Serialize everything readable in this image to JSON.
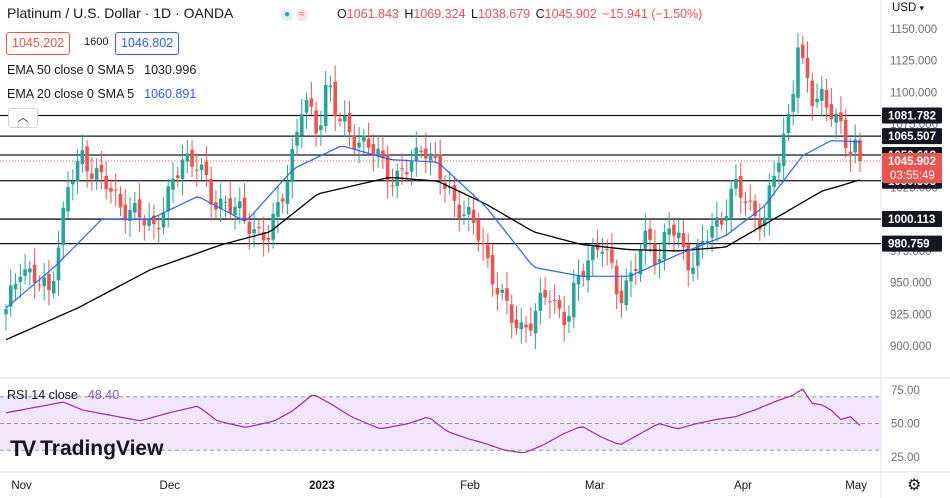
{
  "header": {
    "title": "Platinum / U.S. Dollar · 1D · OANDA",
    "ohlc": {
      "o_label": "O",
      "o": "1061.843",
      "h_label": "H",
      "h": "1069.324",
      "l_label": "L",
      "l": "1038.679",
      "c_label": "C",
      "c": "1045.902",
      "change": "−15.941 (−1.50%)"
    },
    "currency": "USD",
    "currency_icon": "chevron-down-icon",
    "bid": "1045.202",
    "spread": "1600",
    "ask": "1046.802",
    "ema50_label": "EMA 50 close 0 SMA 5",
    "ema50_value": "1030.996",
    "ema20_label": "EMA 20 close 0 SMA 5",
    "ema20_value": "1060.891",
    "rsi_label": "RSI 14 close",
    "rsi_value": "48.40",
    "brand": "TradingView",
    "settings_icon": "gear-icon",
    "collapse_icon": "chevron-up-icon"
  },
  "colors": {
    "up": "#26a69a",
    "down": "#ef5350",
    "ema20": "#2962ff",
    "ema50": "#000000",
    "rsi": "#9c27b0",
    "rsi_band": "#f3e5fc"
  },
  "chart_data": [
    {
      "type": "candlestick",
      "title": "Platinum / U.S. Dollar · 1D · OANDA",
      "ylim": [
        885,
        1155
      ],
      "y_ticks": [
        "1150.000",
        "1125.000",
        "1100.000",
        "1075.000",
        "1050.000",
        "1025.000",
        "1000.000",
        "975.000",
        "950.000",
        "925.000",
        "900.000"
      ],
      "x_ticks": [
        "Nov",
        "Dec",
        "2023",
        "Feb",
        "Mar",
        "Apr",
        "May"
      ],
      "horizontal_levels": [
        {
          "label": "1081.782",
          "value": 1081.782
        },
        {
          "label": "1065.507",
          "value": 1065.507
        },
        {
          "label": "1050.618",
          "value": 1050.618
        },
        {
          "label": "1030.305",
          "value": 1030.305
        },
        {
          "label": "1000.113",
          "value": 1000.113
        },
        {
          "label": "980.759",
          "value": 980.759
        }
      ],
      "last_price": {
        "label": "1045.902",
        "countdown": "03:55:49",
        "value": 1045.902
      },
      "close_path": [
        [
          0,
          925
        ],
        [
          3,
          965
        ],
        [
          6,
          952
        ],
        [
          9,
          942
        ],
        [
          13,
          1025
        ],
        [
          16,
          1050
        ],
        [
          20,
          1030
        ],
        [
          24,
          1012
        ],
        [
          28,
          1000
        ],
        [
          31,
          995
        ],
        [
          34,
          1018
        ],
        [
          37,
          1050
        ],
        [
          40,
          1045
        ],
        [
          43,
          1012
        ],
        [
          46,
          1015
        ],
        [
          49,
          1002
        ],
        [
          52,
          992
        ],
        [
          55,
          985
        ],
        [
          59,
          1040
        ],
        [
          62,
          1093
        ],
        [
          65,
          1070
        ],
        [
          67,
          1112
        ],
        [
          69,
          1078
        ],
        [
          72,
          1068
        ],
        [
          75,
          1058
        ],
        [
          78,
          1048
        ],
        [
          81,
          1030
        ],
        [
          84,
          1040
        ],
        [
          87,
          1062
        ],
        [
          90,
          1035
        ],
        [
          93,
          1018
        ],
        [
          96,
          1002
        ],
        [
          99,
          985
        ],
        [
          101,
          960
        ],
        [
          104,
          930
        ],
        [
          107,
          915
        ],
        [
          110,
          920
        ],
        [
          113,
          945
        ],
        [
          115,
          930
        ],
        [
          117,
          918
        ],
        [
          119,
          950
        ],
        [
          121,
          970
        ],
        [
          124,
          980
        ],
        [
          126,
          962
        ],
        [
          128,
          940
        ],
        [
          131,
          960
        ],
        [
          134,
          990
        ],
        [
          136,
          965
        ],
        [
          138,
          995
        ],
        [
          141,
          978
        ],
        [
          143,
          965
        ],
        [
          146,
          985
        ],
        [
          149,
          1002
        ],
        [
          152,
          1025
        ],
        [
          155,
          1010
        ],
        [
          158,
          998
        ],
        [
          161,
          1048
        ],
        [
          163,
          1080
        ],
        [
          164,
          1104
        ],
        [
          165,
          1140
        ],
        [
          166,
          1118
        ],
        [
          168,
          1095
        ],
        [
          170,
          1100
        ],
        [
          172,
          1085
        ],
        [
          174,
          1068
        ],
        [
          175,
          1060
        ],
        [
          176,
          1057
        ],
        [
          177,
          1061
        ],
        [
          178,
          1046
        ]
      ],
      "ema20": [
        [
          0,
          930
        ],
        [
          10,
          962
        ],
        [
          20,
          1000
        ],
        [
          30,
          1000
        ],
        [
          40,
          1018
        ],
        [
          50,
          998
        ],
        [
          60,
          1040
        ],
        [
          70,
          1058
        ],
        [
          80,
          1047
        ],
        [
          90,
          1045
        ],
        [
          100,
          1010
        ],
        [
          110,
          962
        ],
        [
          120,
          955
        ],
        [
          130,
          955
        ],
        [
          140,
          972
        ],
        [
          150,
          987
        ],
        [
          158,
          1010
        ],
        [
          166,
          1050
        ],
        [
          172,
          1062
        ],
        [
          178,
          1061
        ]
      ],
      "ema50": [
        [
          0,
          905
        ],
        [
          15,
          930
        ],
        [
          30,
          960
        ],
        [
          45,
          980
        ],
        [
          55,
          990
        ],
        [
          65,
          1020
        ],
        [
          80,
          1033
        ],
        [
          90,
          1030
        ],
        [
          100,
          1012
        ],
        [
          110,
          990
        ],
        [
          120,
          980
        ],
        [
          130,
          976
        ],
        [
          140,
          975
        ],
        [
          150,
          978
        ],
        [
          160,
          1000
        ],
        [
          170,
          1022
        ],
        [
          178,
          1031
        ]
      ]
    },
    {
      "type": "line",
      "title": "RSI 14 close",
      "ylim": [
        20,
        80
      ],
      "y_ticks": [
        "75.00",
        "50.00",
        "25.00"
      ],
      "band": [
        30,
        70
      ],
      "values": [
        [
          0,
          58
        ],
        [
          6,
          62
        ],
        [
          12,
          66
        ],
        [
          16,
          60
        ],
        [
          22,
          56
        ],
        [
          28,
          52
        ],
        [
          34,
          58
        ],
        [
          40,
          63
        ],
        [
          44,
          52
        ],
        [
          50,
          47
        ],
        [
          56,
          52
        ],
        [
          60,
          60
        ],
        [
          64,
          72
        ],
        [
          68,
          64
        ],
        [
          72,
          55
        ],
        [
          78,
          46
        ],
        [
          84,
          50
        ],
        [
          88,
          55
        ],
        [
          92,
          44
        ],
        [
          96,
          39
        ],
        [
          100,
          35
        ],
        [
          104,
          30
        ],
        [
          108,
          28
        ],
        [
          112,
          34
        ],
        [
          116,
          42
        ],
        [
          120,
          48
        ],
        [
          124,
          40
        ],
        [
          128,
          34
        ],
        [
          132,
          42
        ],
        [
          136,
          50
        ],
        [
          140,
          46
        ],
        [
          144,
          50
        ],
        [
          148,
          53
        ],
        [
          152,
          55
        ],
        [
          156,
          60
        ],
        [
          160,
          66
        ],
        [
          164,
          71
        ],
        [
          166,
          76
        ],
        [
          168,
          65
        ],
        [
          170,
          64
        ],
        [
          172,
          60
        ],
        [
          174,
          53
        ],
        [
          176,
          55
        ],
        [
          178,
          48.4
        ]
      ]
    }
  ]
}
